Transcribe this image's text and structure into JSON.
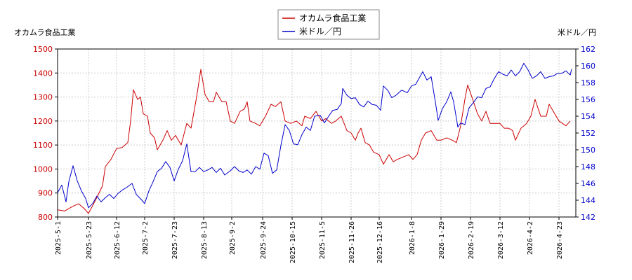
{
  "chart_data": {
    "type": "line",
    "legend": {
      "placement": "top-center",
      "entries": [
        "オカムラ食品工業",
        "米ドル／円"
      ]
    },
    "left_axis": {
      "label": "オカムラ食品工業",
      "range": [
        800,
        1500
      ],
      "ticks": [
        "800",
        "900",
        "1000",
        "1100",
        "1200",
        "1300",
        "1400",
        "1500"
      ],
      "color": "#cc0000"
    },
    "right_axis": {
      "label": "米ドル／円",
      "range": [
        142,
        162
      ],
      "ticks": [
        "142",
        "144",
        "146",
        "148",
        "150",
        "152",
        "154",
        "156",
        "158",
        "160",
        "162"
      ],
      "color": "#0000cc"
    },
    "x_axis": {
      "range": [
        "2025-05-01",
        "2026-05-05"
      ],
      "ticks": [
        "2025-5-1",
        "2025-5-23",
        "2025-6-12",
        "2025-7-2",
        "2025-7-23",
        "2025-8-13",
        "2025-9-2",
        "2025-9-24",
        "2025-10-15",
        "2025-11-5",
        "2025-11-26",
        "2025-12-16",
        "2026-1-8",
        "2026-1-29",
        "2026-2-19",
        "2026-3-12",
        "2026-4-2",
        "2026-4-23"
      ]
    },
    "grid": true,
    "series": [
      {
        "name": "オカムラ食品工業",
        "axis": "left",
        "color": "#cc0000",
        "points": [
          [
            "2025-05-01",
            830
          ],
          [
            "2025-05-06",
            825
          ],
          [
            "2025-05-12",
            845
          ],
          [
            "2025-05-16",
            855
          ],
          [
            "2025-05-20",
            835
          ],
          [
            "2025-05-23",
            815
          ],
          [
            "2025-05-28",
            870
          ],
          [
            "2025-06-02",
            930
          ],
          [
            "2025-06-04",
            1010
          ],
          [
            "2025-06-08",
            1040
          ],
          [
            "2025-06-12",
            1085
          ],
          [
            "2025-06-16",
            1090
          ],
          [
            "2025-06-20",
            1110
          ],
          [
            "2025-06-22",
            1200
          ],
          [
            "2025-06-24",
            1330
          ],
          [
            "2025-06-27",
            1290
          ],
          [
            "2025-06-29",
            1300
          ],
          [
            "2025-07-01",
            1230
          ],
          [
            "2025-07-04",
            1220
          ],
          [
            "2025-07-06",
            1150
          ],
          [
            "2025-07-09",
            1130
          ],
          [
            "2025-07-11",
            1080
          ],
          [
            "2025-07-15",
            1120
          ],
          [
            "2025-07-18",
            1160
          ],
          [
            "2025-07-21",
            1120
          ],
          [
            "2025-07-24",
            1140
          ],
          [
            "2025-07-28",
            1100
          ],
          [
            "2025-08-01",
            1190
          ],
          [
            "2025-08-04",
            1170
          ],
          [
            "2025-08-08",
            1300
          ],
          [
            "2025-08-11",
            1415
          ],
          [
            "2025-08-14",
            1310
          ],
          [
            "2025-08-17",
            1280
          ],
          [
            "2025-08-20",
            1280
          ],
          [
            "2025-08-22",
            1320
          ],
          [
            "2025-08-26",
            1280
          ],
          [
            "2025-08-29",
            1280
          ],
          [
            "2025-09-01",
            1200
          ],
          [
            "2025-09-04",
            1190
          ],
          [
            "2025-09-08",
            1240
          ],
          [
            "2025-09-11",
            1250
          ],
          [
            "2025-09-13",
            1280
          ],
          [
            "2025-09-15",
            1200
          ],
          [
            "2025-09-19",
            1190
          ],
          [
            "2025-09-22",
            1180
          ],
          [
            "2025-09-26",
            1220
          ],
          [
            "2025-09-30",
            1270
          ],
          [
            "2025-10-03",
            1260
          ],
          [
            "2025-10-07",
            1280
          ],
          [
            "2025-10-10",
            1200
          ],
          [
            "2025-10-14",
            1190
          ],
          [
            "2025-10-18",
            1200
          ],
          [
            "2025-10-22",
            1180
          ],
          [
            "2025-10-24",
            1220
          ],
          [
            "2025-10-28",
            1210
          ],
          [
            "2025-11-01",
            1240
          ],
          [
            "2025-11-05",
            1200
          ],
          [
            "2025-11-08",
            1210
          ],
          [
            "2025-11-12",
            1190
          ],
          [
            "2025-11-15",
            1200
          ],
          [
            "2025-11-19",
            1220
          ],
          [
            "2025-11-23",
            1160
          ],
          [
            "2025-11-26",
            1150
          ],
          [
            "2025-11-29",
            1120
          ],
          [
            "2025-12-01",
            1150
          ],
          [
            "2025-12-03",
            1170
          ],
          [
            "2025-12-06",
            1110
          ],
          [
            "2025-12-09",
            1100
          ],
          [
            "2025-12-12",
            1070
          ],
          [
            "2025-12-16",
            1060
          ],
          [
            "2025-12-19",
            1020
          ],
          [
            "2025-12-23",
            1060
          ],
          [
            "2025-12-26",
            1030
          ],
          [
            "2025-12-29",
            1040
          ],
          [
            "2026-01-02",
            1050
          ],
          [
            "2026-01-06",
            1060
          ],
          [
            "2026-01-09",
            1040
          ],
          [
            "2026-01-12",
            1060
          ],
          [
            "2026-01-15",
            1120
          ],
          [
            "2026-01-18",
            1150
          ],
          [
            "2026-01-22",
            1160
          ],
          [
            "2026-01-26",
            1120
          ],
          [
            "2026-01-29",
            1120
          ],
          [
            "2026-02-02",
            1130
          ],
          [
            "2026-02-06",
            1120
          ],
          [
            "2026-02-09",
            1110
          ],
          [
            "2026-02-12",
            1180
          ],
          [
            "2026-02-15",
            1290
          ],
          [
            "2026-02-17",
            1350
          ],
          [
            "2026-02-20",
            1300
          ],
          [
            "2026-02-24",
            1230
          ],
          [
            "2026-02-27",
            1200
          ],
          [
            "2026-03-02",
            1240
          ],
          [
            "2026-03-05",
            1190
          ],
          [
            "2026-03-09",
            1190
          ],
          [
            "2026-03-12",
            1190
          ],
          [
            "2026-03-15",
            1170
          ],
          [
            "2026-03-18",
            1170
          ],
          [
            "2026-03-21",
            1160
          ],
          [
            "2026-03-23",
            1120
          ],
          [
            "2026-03-27",
            1170
          ],
          [
            "2026-03-31",
            1190
          ],
          [
            "2026-04-03",
            1220
          ],
          [
            "2026-04-06",
            1290
          ],
          [
            "2026-04-10",
            1220
          ],
          [
            "2026-04-14",
            1220
          ],
          [
            "2026-04-16",
            1270
          ],
          [
            "2026-04-20",
            1230
          ],
          [
            "2026-04-23",
            1200
          ],
          [
            "2026-04-28",
            1180
          ],
          [
            "2026-05-01",
            1200
          ]
        ]
      },
      {
        "name": "米ドル／円",
        "axis": "right",
        "color": "#0000cc",
        "points": [
          [
            "2025-05-01",
            144.9
          ],
          [
            "2025-05-04",
            145.8
          ],
          [
            "2025-05-07",
            143.8
          ],
          [
            "2025-05-09",
            146.2
          ],
          [
            "2025-05-12",
            148.1
          ],
          [
            "2025-05-15",
            146.3
          ],
          [
            "2025-05-18",
            145.1
          ],
          [
            "2025-05-21",
            144.2
          ],
          [
            "2025-05-23",
            143.1
          ],
          [
            "2025-05-26",
            143.6
          ],
          [
            "2025-05-29",
            144.5
          ],
          [
            "2025-06-01",
            143.8
          ],
          [
            "2025-06-04",
            144.3
          ],
          [
            "2025-06-07",
            144.7
          ],
          [
            "2025-06-10",
            144.2
          ],
          [
            "2025-06-13",
            144.8
          ],
          [
            "2025-06-16",
            145.2
          ],
          [
            "2025-06-19",
            145.5
          ],
          [
            "2025-06-23",
            146.0
          ],
          [
            "2025-06-26",
            144.7
          ],
          [
            "2025-06-30",
            144.0
          ],
          [
            "2025-07-02",
            143.6
          ],
          [
            "2025-07-05",
            145.1
          ],
          [
            "2025-07-08",
            146.2
          ],
          [
            "2025-07-11",
            147.4
          ],
          [
            "2025-07-14",
            147.8
          ],
          [
            "2025-07-17",
            148.6
          ],
          [
            "2025-07-20",
            147.9
          ],
          [
            "2025-07-23",
            146.3
          ],
          [
            "2025-07-26",
            147.7
          ],
          [
            "2025-07-29",
            148.7
          ],
          [
            "2025-08-01",
            150.7
          ],
          [
            "2025-08-04",
            147.4
          ],
          [
            "2025-08-07",
            147.4
          ],
          [
            "2025-08-10",
            147.9
          ],
          [
            "2025-08-13",
            147.4
          ],
          [
            "2025-08-16",
            147.6
          ],
          [
            "2025-08-19",
            147.9
          ],
          [
            "2025-08-22",
            147.3
          ],
          [
            "2025-08-25",
            147.8
          ],
          [
            "2025-08-28",
            147.0
          ],
          [
            "2025-09-01",
            147.5
          ],
          [
            "2025-09-04",
            148.0
          ],
          [
            "2025-09-07",
            147.5
          ],
          [
            "2025-09-10",
            147.3
          ],
          [
            "2025-09-13",
            147.6
          ],
          [
            "2025-09-16",
            147.1
          ],
          [
            "2025-09-19",
            148.0
          ],
          [
            "2025-09-22",
            147.7
          ],
          [
            "2025-09-25",
            149.6
          ],
          [
            "2025-09-28",
            149.3
          ],
          [
            "2025-10-01",
            147.2
          ],
          [
            "2025-10-04",
            147.6
          ],
          [
            "2025-10-07",
            150.5
          ],
          [
            "2025-10-10",
            153.0
          ],
          [
            "2025-10-13",
            152.3
          ],
          [
            "2025-10-16",
            150.7
          ],
          [
            "2025-10-19",
            150.6
          ],
          [
            "2025-10-22",
            151.8
          ],
          [
            "2025-10-25",
            152.7
          ],
          [
            "2025-10-28",
            152.3
          ],
          [
            "2025-10-31",
            154.0
          ],
          [
            "2025-11-04",
            154.1
          ],
          [
            "2025-11-07",
            153.2
          ],
          [
            "2025-11-10",
            154.0
          ],
          [
            "2025-11-13",
            154.7
          ],
          [
            "2025-11-16",
            154.8
          ],
          [
            "2025-11-19",
            155.5
          ],
          [
            "2025-11-20",
            157.3
          ],
          [
            "2025-11-23",
            156.5
          ],
          [
            "2025-11-26",
            156.1
          ],
          [
            "2025-11-29",
            156.2
          ],
          [
            "2025-12-02",
            155.4
          ],
          [
            "2025-12-05",
            155.1
          ],
          [
            "2025-12-08",
            155.8
          ],
          [
            "2025-12-11",
            155.4
          ],
          [
            "2025-12-14",
            155.3
          ],
          [
            "2025-12-17",
            154.7
          ],
          [
            "2025-12-19",
            157.6
          ],
          [
            "2025-12-22",
            157.1
          ],
          [
            "2025-12-25",
            156.2
          ],
          [
            "2025-12-28",
            156.5
          ],
          [
            "2026-01-01",
            157.1
          ],
          [
            "2026-01-05",
            156.8
          ],
          [
            "2026-01-08",
            157.6
          ],
          [
            "2026-01-11",
            157.8
          ],
          [
            "2026-01-14",
            158.7
          ],
          [
            "2026-01-16",
            159.3
          ],
          [
            "2026-01-19",
            158.3
          ],
          [
            "2026-01-22",
            158.7
          ],
          [
            "2026-01-25",
            155.7
          ],
          [
            "2026-01-27",
            153.5
          ],
          [
            "2026-01-30",
            154.9
          ],
          [
            "2026-02-02",
            155.7
          ],
          [
            "2026-02-05",
            156.9
          ],
          [
            "2026-02-07",
            155.7
          ],
          [
            "2026-02-10",
            152.7
          ],
          [
            "2026-02-12",
            153.2
          ],
          [
            "2026-02-15",
            153.0
          ],
          [
            "2026-02-18",
            155.0
          ],
          [
            "2026-02-21",
            155.6
          ],
          [
            "2026-02-24",
            156.3
          ],
          [
            "2026-02-27",
            156.2
          ],
          [
            "2026-03-02",
            157.3
          ],
          [
            "2026-03-05",
            157.5
          ],
          [
            "2026-03-08",
            158.5
          ],
          [
            "2026-03-11",
            159.3
          ],
          [
            "2026-03-14",
            159.0
          ],
          [
            "2026-03-17",
            158.8
          ],
          [
            "2026-03-20",
            159.5
          ],
          [
            "2026-03-23",
            158.8
          ],
          [
            "2026-03-26",
            159.3
          ],
          [
            "2026-03-29",
            160.3
          ],
          [
            "2026-04-01",
            159.5
          ],
          [
            "2026-04-04",
            158.5
          ],
          [
            "2026-04-07",
            158.8
          ],
          [
            "2026-04-10",
            159.3
          ],
          [
            "2026-04-13",
            158.5
          ],
          [
            "2026-04-16",
            158.7
          ],
          [
            "2026-04-19",
            158.8
          ],
          [
            "2026-04-22",
            159.1
          ],
          [
            "2026-04-25",
            159.1
          ],
          [
            "2026-04-28",
            159.4
          ],
          [
            "2026-05-01",
            158.9
          ],
          [
            "2026-05-02",
            159.6
          ]
        ]
      }
    ]
  }
}
